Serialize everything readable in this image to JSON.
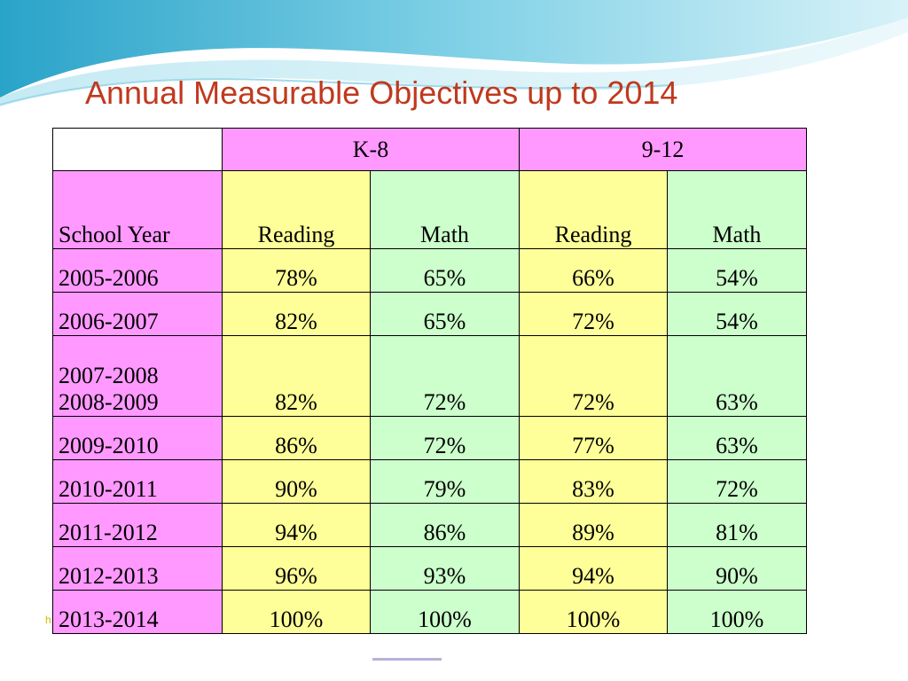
{
  "slide": {
    "title": "Annual Measurable Objectives up to 2014",
    "accent_color": "#c0391e",
    "footnote_mark": "h"
  },
  "table": {
    "groups": [
      "K-8",
      "9-12"
    ],
    "subheaders": [
      "School Year",
      "Reading",
      "Math",
      "Reading",
      "Math"
    ],
    "colors": {
      "header": "#ff99ff",
      "reading": "#ffff99",
      "math": "#ccffcc"
    },
    "rows": [
      {
        "year": "2005-2006",
        "values": [
          "78%",
          "65%",
          "66%",
          "54%"
        ]
      },
      {
        "year": "2006-2007",
        "values": [
          "82%",
          "65%",
          "72%",
          "54%"
        ]
      },
      {
        "year_lines": [
          "2007-2008",
          "2008-2009"
        ],
        "values": [
          "82%",
          "72%",
          "72%",
          "63%"
        ]
      },
      {
        "year": "2009-2010",
        "values": [
          "86%",
          "72%",
          "77%",
          "63%"
        ]
      },
      {
        "year": "2010-2011",
        "values": [
          "90%",
          "79%",
          "83%",
          "72%"
        ]
      },
      {
        "year": "2011-2012",
        "values": [
          "94%",
          "86%",
          "89%",
          "81%"
        ]
      },
      {
        "year": "2012-2013",
        "values": [
          "96%",
          "93%",
          "94%",
          "90%"
        ]
      },
      {
        "year": "2013-2014",
        "values": [
          "100%",
          "100%",
          "100%",
          "100%"
        ]
      }
    ]
  }
}
